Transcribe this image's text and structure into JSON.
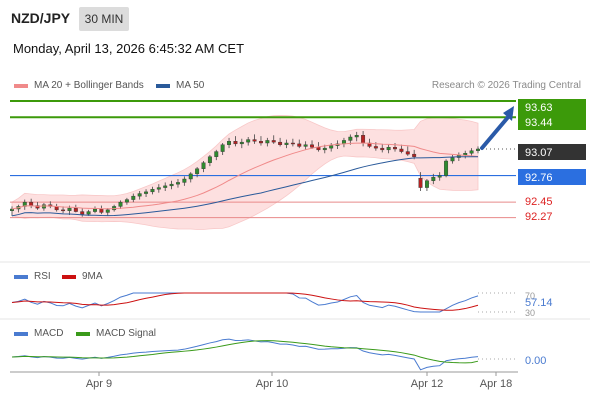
{
  "header": {
    "symbol": "NZD/JPY",
    "timeframe": "30 MIN",
    "datetime": "Monday, April 13, 2026 6:45:32 AM CET"
  },
  "price_legend": [
    {
      "label": "MA 20 + Bollinger Bands",
      "color": "#f08a8a"
    },
    {
      "label": "MA 50",
      "color": "#2a5a9a"
    }
  ],
  "credit": "Research © 2026 Trading Central",
  "rsi_legend": [
    {
      "label": "RSI",
      "color": "#4a7bd0"
    },
    {
      "label": "9MA",
      "color": "#cc1111"
    }
  ],
  "macd_legend": [
    {
      "label": "MACD",
      "color": "#4a7bd0"
    },
    {
      "label": "MACD Signal",
      "color": "#3a9a1a"
    }
  ],
  "x_labels": [
    "Apr 9",
    "Apr 10",
    "Apr 12",
    "Apr 18"
  ],
  "levels": [
    {
      "value": "93.63",
      "kind": "resistance",
      "color": "#3c9a0a"
    },
    {
      "value": "93.44",
      "kind": "resistance",
      "color": "#3c9a0a"
    },
    {
      "value": "93.07",
      "kind": "current",
      "color": "#333333"
    },
    {
      "value": "92.76",
      "kind": "pivot",
      "color": "#2b6fe0"
    },
    {
      "value": "92.45",
      "kind": "support",
      "color": "#dd2222"
    },
    {
      "value": "92.27",
      "kind": "support",
      "color": "#dd2222"
    }
  ],
  "rsi": {
    "value": "57.14",
    "level_70": "70",
    "level_30": "30"
  },
  "macd": {
    "value": "0.00"
  },
  "chart_data": {
    "type": "candlestick",
    "y_range": [
      91.95,
      93.7
    ],
    "x_range": [
      0,
      100
    ],
    "candles": [
      [
        0,
        92.35,
        92.4,
        92.29,
        92.37
      ],
      [
        1,
        92.37,
        92.42,
        92.33,
        92.4
      ],
      [
        2,
        92.4,
        92.48,
        92.36,
        92.45
      ],
      [
        3,
        92.45,
        92.49,
        92.38,
        92.41
      ],
      [
        4,
        92.41,
        92.45,
        92.36,
        92.38
      ],
      [
        5,
        92.38,
        92.44,
        92.35,
        92.42
      ],
      [
        6,
        92.42,
        92.46,
        92.38,
        92.4
      ],
      [
        7,
        92.4,
        92.43,
        92.34,
        92.36
      ],
      [
        8,
        92.36,
        92.4,
        92.32,
        92.35
      ],
      [
        9,
        92.35,
        92.41,
        92.3,
        92.38
      ],
      [
        10,
        92.38,
        92.42,
        92.33,
        92.34
      ],
      [
        11,
        92.34,
        92.38,
        92.28,
        92.31
      ],
      [
        12,
        92.31,
        92.36,
        92.29,
        92.34
      ],
      [
        13,
        92.34,
        92.4,
        92.32,
        92.37
      ],
      [
        14,
        92.37,
        92.41,
        92.31,
        92.33
      ],
      [
        15,
        92.33,
        92.38,
        92.29,
        92.36
      ],
      [
        16,
        92.36,
        92.42,
        92.34,
        92.4
      ],
      [
        17,
        92.4,
        92.47,
        92.37,
        92.45
      ],
      [
        18,
        92.45,
        92.5,
        92.42,
        92.48
      ],
      [
        19,
        92.48,
        92.55,
        92.45,
        92.52
      ],
      [
        20,
        92.52,
        92.58,
        92.48,
        92.55
      ],
      [
        21,
        92.55,
        92.6,
        92.51,
        92.57
      ],
      [
        22,
        92.57,
        92.63,
        92.54,
        92.6
      ],
      [
        23,
        92.6,
        92.66,
        92.56,
        92.62
      ],
      [
        24,
        92.62,
        92.68,
        92.58,
        92.64
      ],
      [
        25,
        92.64,
        92.7,
        92.6,
        92.66
      ],
      [
        26,
        92.66,
        92.72,
        92.62,
        92.68
      ],
      [
        27,
        92.68,
        92.75,
        92.64,
        92.72
      ],
      [
        28,
        92.72,
        92.8,
        92.68,
        92.78
      ],
      [
        29,
        92.78,
        92.86,
        92.74,
        92.84
      ],
      [
        30,
        92.84,
        92.93,
        92.8,
        92.91
      ],
      [
        31,
        92.91,
        93.0,
        92.87,
        92.98
      ],
      [
        32,
        92.98,
        93.06,
        92.94,
        93.04
      ],
      [
        33,
        93.04,
        93.14,
        93.0,
        93.12
      ],
      [
        34,
        93.12,
        93.2,
        93.08,
        93.16
      ],
      [
        35,
        93.16,
        93.22,
        93.1,
        93.13
      ],
      [
        36,
        93.13,
        93.19,
        93.08,
        93.15
      ],
      [
        37,
        93.15,
        93.21,
        93.11,
        93.18
      ],
      [
        38,
        93.18,
        93.24,
        93.13,
        93.16
      ],
      [
        39,
        93.16,
        93.22,
        93.11,
        93.14
      ],
      [
        40,
        93.14,
        93.2,
        93.1,
        93.17
      ],
      [
        41,
        93.17,
        93.23,
        93.13,
        93.15
      ],
      [
        42,
        93.15,
        93.2,
        93.1,
        93.12
      ],
      [
        43,
        93.12,
        93.18,
        93.08,
        93.14
      ],
      [
        44,
        93.14,
        93.19,
        93.1,
        93.13
      ],
      [
        45,
        93.13,
        93.18,
        93.08,
        93.1
      ],
      [
        46,
        93.1,
        93.16,
        93.06,
        93.12
      ],
      [
        47,
        93.12,
        93.17,
        93.07,
        93.09
      ],
      [
        48,
        93.09,
        93.15,
        93.04,
        93.06
      ],
      [
        49,
        93.06,
        93.12,
        93.02,
        93.08
      ],
      [
        50,
        93.08,
        93.14,
        93.04,
        93.11
      ],
      [
        51,
        93.11,
        93.17,
        93.07,
        93.13
      ],
      [
        52,
        93.13,
        93.2,
        93.09,
        93.17
      ],
      [
        53,
        93.17,
        93.24,
        93.12,
        93.21
      ],
      [
        54,
        93.21,
        93.27,
        93.16,
        93.23
      ],
      [
        55,
        93.23,
        93.28,
        93.1,
        93.14
      ],
      [
        56,
        93.14,
        93.19,
        93.08,
        93.1
      ],
      [
        57,
        93.1,
        93.15,
        93.05,
        93.08
      ],
      [
        58,
        93.08,
        93.13,
        93.03,
        93.06
      ],
      [
        59,
        93.06,
        93.12,
        93.02,
        93.09
      ],
      [
        60,
        93.09,
        93.14,
        93.04,
        93.07
      ],
      [
        61,
        93.07,
        93.12,
        93.02,
        93.04
      ],
      [
        62,
        93.04,
        93.1,
        92.99,
        93.01
      ],
      [
        63,
        93.01,
        93.06,
        92.95,
        92.98
      ],
      [
        64,
        92.73,
        92.8,
        92.58,
        92.62
      ],
      [
        65,
        92.62,
        92.72,
        92.58,
        92.7
      ],
      [
        66,
        92.7,
        92.78,
        92.66,
        92.74
      ],
      [
        67,
        92.74,
        92.8,
        92.7,
        92.76
      ],
      [
        68,
        92.76,
        92.95,
        92.74,
        92.93
      ],
      [
        69,
        92.93,
        93.0,
        92.9,
        92.97
      ],
      [
        70,
        92.97,
        93.03,
        92.93,
        93.0
      ],
      [
        71,
        93.0,
        93.05,
        92.96,
        93.02
      ],
      [
        72,
        93.02,
        93.08,
        92.99,
        93.05
      ],
      [
        73,
        93.05,
        93.1,
        93.02,
        93.07
      ]
    ],
    "levels": [
      93.63,
      93.44,
      93.07,
      92.76,
      92.45,
      92.27
    ],
    "rsi_range": [
      30,
      70
    ],
    "macd_zero": 0.0
  }
}
